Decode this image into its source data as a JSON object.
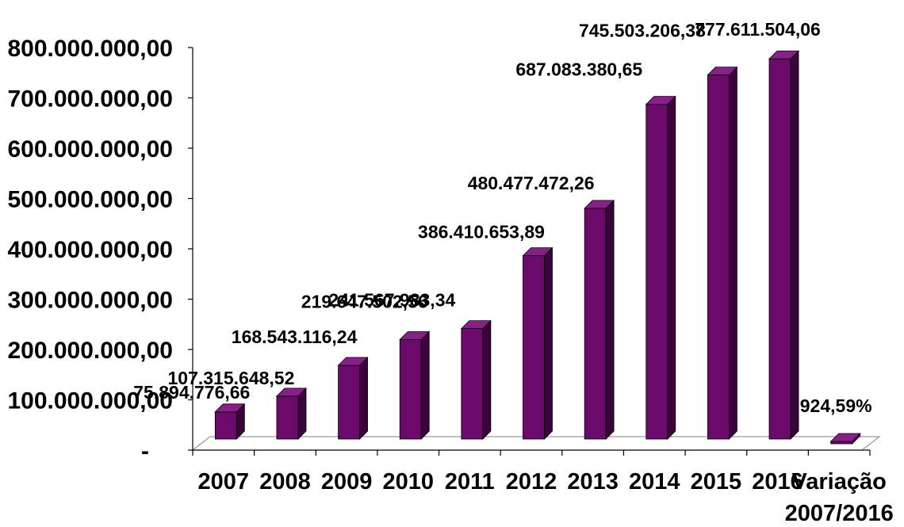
{
  "chart_data": {
    "type": "bar",
    "categories": [
      "2007",
      "2008",
      "2009",
      "2010",
      "2011",
      "2012",
      "2013",
      "2014",
      "2015",
      "2016",
      "Variação 2007/2016"
    ],
    "values": [
      75894776.66,
      107315648.52,
      168543116.24,
      219647502.56,
      241567983.34,
      386410653.89,
      480477472.26,
      687083380.65,
      745503206.38,
      777611504.06,
      9.2459
    ],
    "data_labels": [
      "75.894.776,66",
      "107.315.648,52",
      "168.543.116,24",
      "219.647.502,56",
      "241.567.983,34",
      "386.410.653,89",
      "480.477.472,26",
      "687.083.380,65",
      "745.503.206,38",
      "777.611.504,06",
      "924,59%"
    ],
    "y_tick_labels": [
      "-",
      "100.000.000,00",
      "200.000.000,00",
      "300.000.000,00",
      "400.000.000,00",
      "500.000.000,00",
      "600.000.000,00",
      "700.000.000,00",
      "800.000.000,00"
    ],
    "ylim": [
      0,
      800000000
    ],
    "ytick_step": 100000000,
    "style": "3d-column",
    "grid": false,
    "legend": "none",
    "colors": {
      "bar_front": "#6B0A6B",
      "bar_side": "#3A033A",
      "bar_top": "#8A1E8A",
      "axis": "#000000",
      "floor": "#808080"
    }
  }
}
